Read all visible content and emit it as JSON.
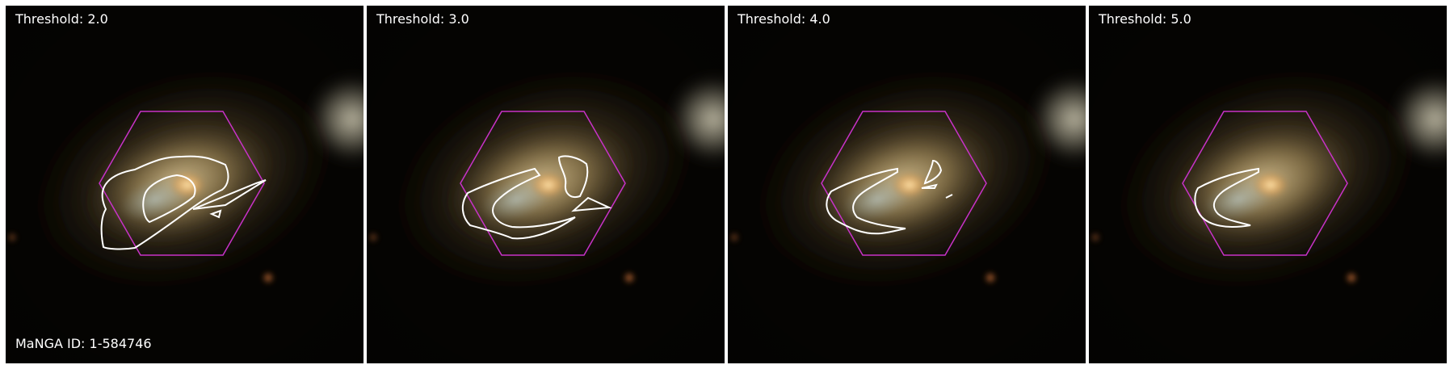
{
  "panels": [
    {
      "threshold_label": "Threshold: 2.0"
    },
    {
      "threshold_label": "Threshold: 3.0"
    },
    {
      "threshold_label": "Threshold: 4.0"
    },
    {
      "threshold_label": "Threshold: 5.0"
    }
  ],
  "galaxy_id_label": "MaNGA ID: 1-584746",
  "colors": {
    "hexagon": "#c832c8",
    "contour": "#ffffff",
    "background": "#050402",
    "text": "#ffffff"
  }
}
